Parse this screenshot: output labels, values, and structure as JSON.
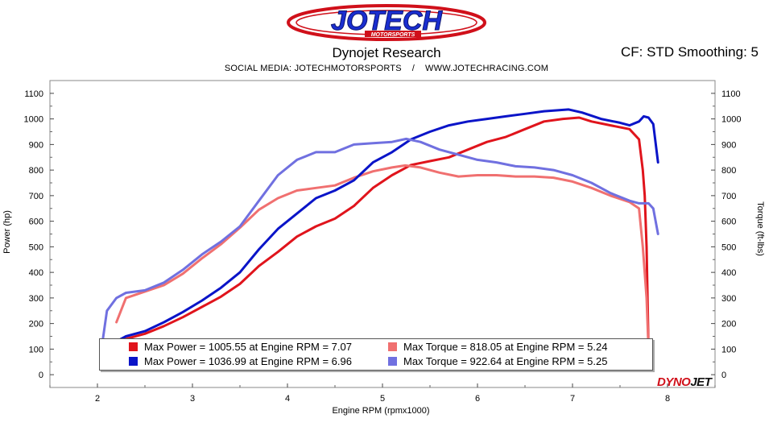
{
  "logo": {
    "brand": "JOTECH",
    "sub": "MOTORSPORTS"
  },
  "header": {
    "title": "Dynojet Research",
    "cf": "CF: STD Smoothing: 5",
    "subtitle": "SOCIAL MEDIA: JOTECHMOTORSPORTS    /    WWW.JOTECHRACING.COM"
  },
  "brand": {
    "dyno": "DYNO",
    "jet": "JET"
  },
  "legend": [
    {
      "text": "Max Power = 1005.55 at Engine RPM = 7.07",
      "color": "#e0141c"
    },
    {
      "text": "Max Torque = 818.05 at Engine RPM = 5.24",
      "color": "#f07070"
    },
    {
      "text": "Max Power = 1036.99 at Engine RPM = 6.96",
      "color": "#0a14c8"
    },
    {
      "text": "Max Torque = 922.64 at Engine RPM = 5.25",
      "color": "#7070e0"
    }
  ],
  "chart_data": {
    "type": "line",
    "xlabel": "Engine RPM (rpmx1000)",
    "ylabel": "Power (hp)",
    "ylabel_right": "Torque (ft-lbs)",
    "xlim": [
      1.5,
      8.5
    ],
    "ylim": [
      -50,
      1150
    ],
    "xticks": [
      2,
      3,
      4,
      5,
      6,
      7,
      8
    ],
    "yticks": [
      0,
      100,
      200,
      300,
      400,
      500,
      600,
      700,
      800,
      900,
      1000,
      1100
    ],
    "grid": false,
    "legend_position": "bottom",
    "series": [
      {
        "name": "Max Power = 1005.55 at Engine RPM = 7.07",
        "color": "#e0141c",
        "width": 3,
        "x": [
          2.15,
          2.3,
          2.5,
          2.7,
          2.9,
          3.1,
          3.3,
          3.5,
          3.7,
          3.9,
          4.1,
          4.3,
          4.5,
          4.7,
          4.9,
          5.1,
          5.3,
          5.5,
          5.7,
          5.9,
          6.1,
          6.3,
          6.5,
          6.7,
          6.9,
          7.07,
          7.2,
          7.4,
          7.6,
          7.7,
          7.74,
          7.76,
          7.78,
          7.8
        ],
        "y": [
          110,
          140,
          160,
          190,
          225,
          265,
          305,
          355,
          425,
          480,
          540,
          580,
          610,
          660,
          730,
          780,
          820,
          835,
          850,
          880,
          910,
          930,
          960,
          990,
          1000,
          1005,
          990,
          975,
          960,
          920,
          800,
          700,
          500,
          100
        ]
      },
      {
        "name": "Max Torque = 818.05 at Engine RPM = 5.24",
        "color": "#f07070",
        "width": 3,
        "x": [
          2.2,
          2.3,
          2.5,
          2.7,
          2.9,
          3.1,
          3.3,
          3.5,
          3.7,
          3.9,
          4.1,
          4.3,
          4.5,
          4.7,
          4.9,
          5.1,
          5.24,
          5.4,
          5.6,
          5.8,
          6.0,
          6.2,
          6.4,
          6.6,
          6.8,
          7.0,
          7.2,
          7.4,
          7.6,
          7.7,
          7.74,
          7.78,
          7.8
        ],
        "y": [
          205,
          300,
          325,
          350,
          395,
          455,
          510,
          575,
          645,
          690,
          720,
          730,
          740,
          770,
          795,
          810,
          818,
          810,
          790,
          775,
          780,
          780,
          775,
          775,
          770,
          755,
          730,
          700,
          675,
          650,
          500,
          300,
          100
        ]
      },
      {
        "name": "Max Power = 1036.99 at Engine RPM = 6.96",
        "color": "#0a14c8",
        "width": 3,
        "x": [
          2.15,
          2.3,
          2.5,
          2.7,
          2.9,
          3.1,
          3.3,
          3.5,
          3.7,
          3.9,
          4.1,
          4.3,
          4.5,
          4.7,
          4.9,
          5.1,
          5.3,
          5.5,
          5.7,
          5.9,
          6.1,
          6.3,
          6.5,
          6.7,
          6.96,
          7.1,
          7.3,
          7.5,
          7.6,
          7.7,
          7.75,
          7.8,
          7.85,
          7.9
        ],
        "y": [
          120,
          150,
          170,
          205,
          245,
          290,
          340,
          400,
          490,
          570,
          630,
          690,
          720,
          760,
          830,
          870,
          920,
          950,
          975,
          990,
          1000,
          1010,
          1020,
          1030,
          1037,
          1025,
          1000,
          985,
          975,
          990,
          1010,
          1005,
          980,
          830
        ]
      },
      {
        "name": "Max Torque = 922.64 at Engine RPM = 5.25",
        "color": "#7070e0",
        "width": 3,
        "x": [
          2.05,
          2.1,
          2.2,
          2.3,
          2.5,
          2.7,
          2.9,
          3.1,
          3.3,
          3.5,
          3.7,
          3.9,
          4.1,
          4.3,
          4.5,
          4.7,
          4.9,
          5.1,
          5.25,
          5.4,
          5.6,
          5.8,
          6.0,
          6.2,
          6.4,
          6.6,
          6.8,
          7.0,
          7.2,
          7.4,
          7.6,
          7.7,
          7.8,
          7.85,
          7.9
        ],
        "y": [
          120,
          250,
          300,
          320,
          330,
          360,
          410,
          470,
          520,
          580,
          680,
          780,
          840,
          870,
          870,
          900,
          905,
          910,
          922,
          910,
          880,
          860,
          840,
          830,
          815,
          810,
          800,
          780,
          750,
          710,
          680,
          670,
          670,
          650,
          550
        ]
      }
    ]
  }
}
